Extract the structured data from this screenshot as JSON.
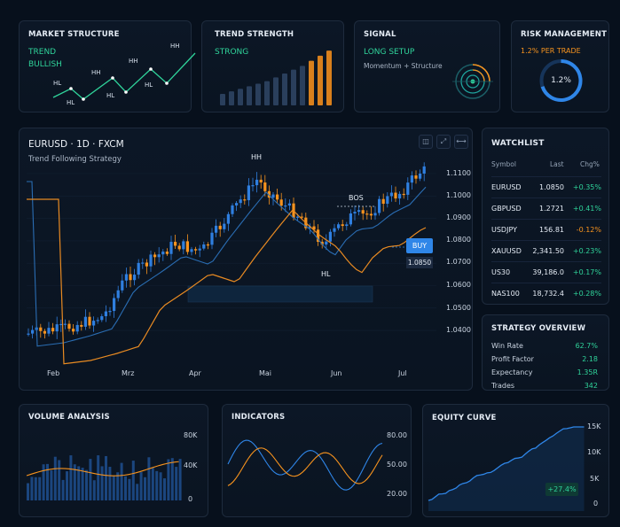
{
  "market_structure": {
    "title": "MARKET STRUCTURE",
    "line1": "TREND",
    "line2": "BULLISH",
    "labels": [
      "HL",
      "HL",
      "HH",
      "HL",
      "HH",
      "HL",
      "HH"
    ]
  },
  "trend_strength": {
    "title": "TREND STRENGTH",
    "status": "STRONG",
    "bars": [
      0.18,
      0.22,
      0.26,
      0.3,
      0.34,
      0.38,
      0.44,
      0.5,
      0.56,
      0.62,
      0.7,
      0.78,
      0.86
    ]
  },
  "signal": {
    "title": "SIGNAL",
    "status": "LONG SETUP",
    "sub": "Momentum + Structure"
  },
  "risk": {
    "title": "RISK MANAGEMENT",
    "per_trade": "1.2% PER TRADE",
    "gauge_label": "1.2%",
    "gauge_fraction": 0.7
  },
  "chart": {
    "symbol": "EURUSD · 1D · FXCM",
    "strategy": "Trend Following Strategy",
    "months": [
      "Feb",
      "Mrz",
      "Apr",
      "Mai",
      "Jun",
      "Jul"
    ],
    "price_ticks": [
      "1.1100",
      "1.1000",
      "1.0900",
      "1.0800",
      "1.0700",
      "1.0600",
      "1.0500",
      "1.0400"
    ],
    "hh_label": "HH",
    "hl_label": "HL",
    "bos_label": "BOS",
    "buy_label": "BUY",
    "buy_price": "1.0850",
    "icons": [
      "camera-icon",
      "expand-icon",
      "link-icon"
    ],
    "colors": {
      "up": "#2f7fe0",
      "down": "#f7931e",
      "ema_fast": "#2a6db3",
      "ema_slow": "#e88a22"
    }
  },
  "watchlist": {
    "title": "WATCHLIST",
    "headers": [
      "Symbol",
      "Last",
      "Chg%"
    ],
    "rows": [
      {
        "symbol": "EURUSD",
        "last": "1.0850",
        "chg": "+0.35%",
        "dir": "up"
      },
      {
        "symbol": "GBPUSD",
        "last": "1.2721",
        "chg": "+0.41%",
        "dir": "up"
      },
      {
        "symbol": "USDJPY",
        "last": "156.81",
        "chg": "-0.12%",
        "dir": "down"
      },
      {
        "symbol": "XAUUSD",
        "last": "2,341.50",
        "chg": "+0.23%",
        "dir": "up"
      },
      {
        "symbol": "US30",
        "last": "39,186.0",
        "chg": "+0.17%",
        "dir": "up"
      },
      {
        "symbol": "NAS100",
        "last": "18,732.4",
        "chg": "+0.28%",
        "dir": "up"
      }
    ]
  },
  "strategy_overview": {
    "title": "STRATEGY OVERVIEW",
    "rows": [
      {
        "label": "Win Rate",
        "value": "62.7%"
      },
      {
        "label": "Profit Factor",
        "value": "2.18"
      },
      {
        "label": "Expectancy",
        "value": "1.35R"
      },
      {
        "label": "Trades",
        "value": "342"
      }
    ]
  },
  "volume": {
    "title": "VOLUME ANALYSIS",
    "ticks": [
      "80K",
      "40K",
      "0"
    ]
  },
  "indicators": {
    "title": "INDICATORS",
    "ticks": [
      "80.00",
      "50.00",
      "20.00"
    ]
  },
  "equity": {
    "title": "EQUITY CURVE",
    "ticks": [
      "15K",
      "10K",
      "5K",
      "0"
    ],
    "badge": "+27.4%"
  }
}
